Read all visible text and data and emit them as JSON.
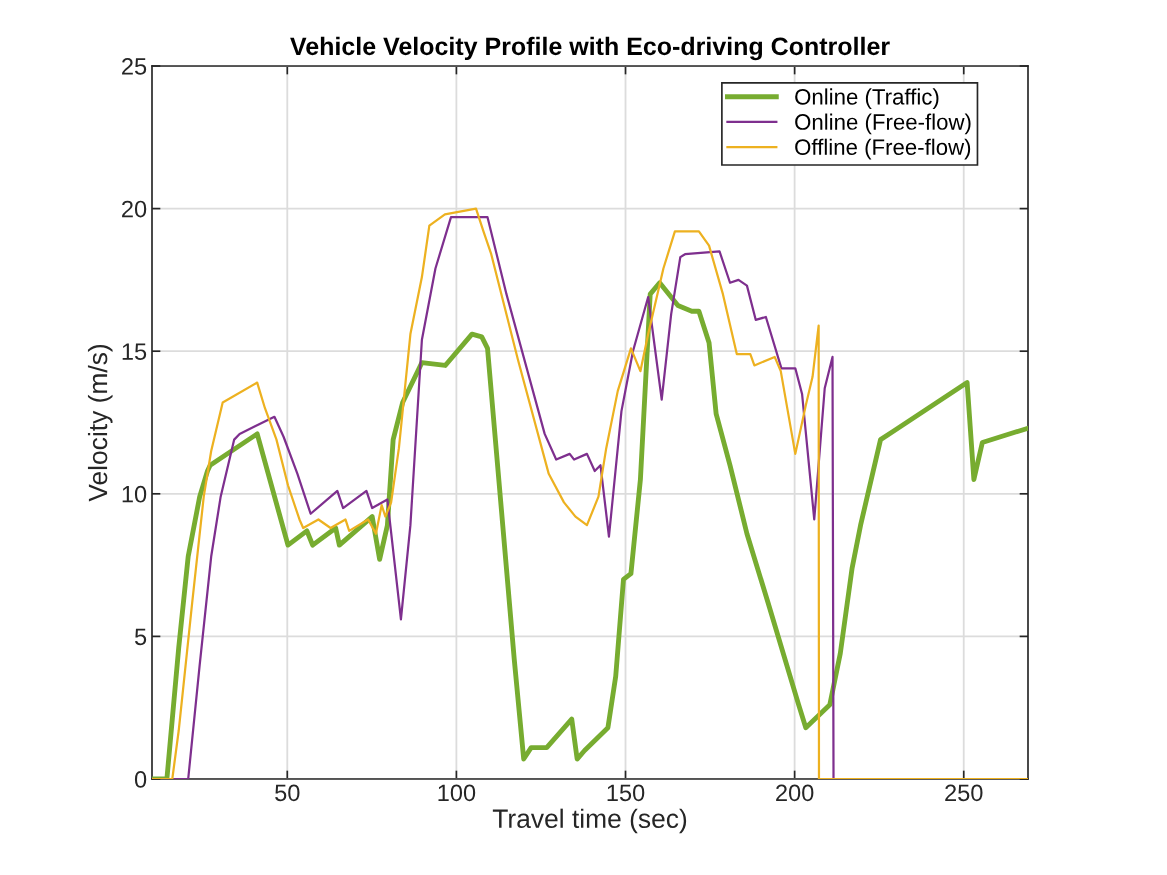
{
  "chart_data": {
    "type": "line",
    "title": "Vehicle Velocity Profile with Eco-driving Controller",
    "xlabel": "Travel time (sec)",
    "ylabel": "Velocity (m/s)",
    "xlim": [
      10,
      269
    ],
    "ylim": [
      0,
      25
    ],
    "xticks": [
      50,
      100,
      150,
      200,
      250
    ],
    "yticks": [
      0,
      5,
      10,
      15,
      20,
      25
    ],
    "grid": true,
    "legend": "top right",
    "line_style": "solid",
    "marker": "none",
    "series": [
      {
        "name": "Online (Traffic)",
        "color": "#77ac30",
        "x": [
          10,
          14.4,
          17.9,
          20.7,
          24.1,
          26.4,
          27.2,
          41.1,
          50.2,
          55.8,
          57.5,
          64.3,
          65.4,
          75.1,
          77.3,
          79.6,
          81.3,
          84.1,
          89.8,
          96.7,
          104.6,
          107.5,
          109.2,
          113.7,
          117.1,
          119.9,
          122.1,
          126.7,
          134.1,
          135.7,
          137.9,
          144.8,
          147.1,
          149.4,
          151.6,
          154.4,
          157.3,
          160.1,
          165.5,
          169.6,
          171.7,
          174.7,
          176.8,
          180.9,
          185.9,
          192.1,
          201.2,
          203.3,
          210.4,
          213.5,
          217.0,
          219.5,
          225.4,
          229.3,
          251.0,
          253.0,
          255.5,
          269
        ],
        "values": [
          0,
          0,
          4.6,
          7.8,
          9.9,
          10.8,
          11.0,
          12.1,
          8.2,
          8.7,
          8.2,
          8.8,
          8.2,
          9.2,
          7.7,
          8.9,
          11.9,
          13.2,
          14.6,
          14.5,
          15.6,
          15.5,
          15.1,
          8.9,
          4.2,
          0.7,
          1.1,
          1.1,
          2.1,
          0.7,
          1.0,
          1.8,
          3.6,
          7.0,
          7.2,
          10.5,
          17.0,
          17.4,
          16.6,
          16.4,
          16.4,
          15.3,
          12.8,
          11.0,
          8.6,
          6.2,
          2.6,
          1.8,
          2.6,
          4.4,
          7.4,
          8.9,
          11.9,
          12.2,
          13.9,
          10.5,
          11.8,
          12.3
        ]
      },
      {
        "name": "Online (Free-flow)",
        "color": "#7e2f8e",
        "x": [
          10,
          20.7,
          24.1,
          27.5,
          30.3,
          34.3,
          35.9,
          46.2,
          48.9,
          53.0,
          56.9,
          64.8,
          66.5,
          73.4,
          75.1,
          79.6,
          83.6,
          86.4,
          89.8,
          93.8,
          98.4,
          109.2,
          114.8,
          126.1,
          129.5,
          133.5,
          134.8,
          138.6,
          140.9,
          142.6,
          145.1,
          148.8,
          152.2,
          156.7,
          160.7,
          163.5,
          166.2,
          167.6,
          177.8,
          180.9,
          183.4,
          185.9,
          188.5,
          191.5,
          196.1,
          200.2,
          202.2,
          205.8,
          208.9,
          211.2,
          211.5,
          269
        ],
        "values": [
          0,
          0,
          4.0,
          7.8,
          9.9,
          11.9,
          12.1,
          12.7,
          12.0,
          10.7,
          9.3,
          10.1,
          9.5,
          10.1,
          9.5,
          9.8,
          5.6,
          8.9,
          15.4,
          17.9,
          19.7,
          19.7,
          17.0,
          12.1,
          11.2,
          11.4,
          11.2,
          11.4,
          10.8,
          11.0,
          8.5,
          12.9,
          15.0,
          16.9,
          13.3,
          16.3,
          18.3,
          18.4,
          18.5,
          17.4,
          17.5,
          17.3,
          16.1,
          16.2,
          14.4,
          14.4,
          13.5,
          9.1,
          13.7,
          14.8,
          0,
          0
        ]
      },
      {
        "name": "Offline (Free-flow)",
        "color": "#edb120",
        "x": [
          10,
          16.0,
          17.9,
          21.9,
          25.3,
          27.5,
          30.9,
          41.1,
          43.4,
          46.8,
          50.2,
          53.6,
          54.7,
          59.2,
          62.8,
          67.2,
          68.3,
          73.9,
          76.2,
          77.9,
          79.0,
          80.7,
          83.0,
          86.4,
          89.8,
          92.0,
          96.6,
          105.8,
          108.0,
          110.3,
          118.2,
          127.3,
          131.8,
          135.2,
          138.6,
          142.0,
          144.3,
          147.7,
          151.6,
          154.4,
          156.7,
          161.2,
          164.6,
          171.7,
          174.7,
          178.8,
          182.9,
          186.9,
          188.1,
          194.1,
          195.9,
          200.2,
          203.3,
          205.3,
          207.1,
          207.2,
          269
        ],
        "values": [
          0,
          0,
          1.7,
          6.2,
          9.9,
          11.5,
          13.2,
          13.9,
          13.0,
          11.9,
          10.3,
          9.1,
          8.8,
          9.1,
          8.8,
          9.1,
          8.7,
          9.1,
          8.6,
          9.6,
          9.2,
          9.7,
          11.6,
          15.6,
          17.6,
          19.4,
          19.8,
          20.0,
          19.2,
          18.4,
          14.7,
          10.7,
          9.7,
          9.2,
          8.9,
          9.9,
          11.6,
          13.6,
          15.1,
          14.3,
          15.6,
          17.9,
          19.2,
          19.2,
          18.7,
          17.0,
          14.9,
          14.9,
          14.5,
          14.8,
          14.3,
          11.4,
          13.1,
          14.1,
          15.9,
          0,
          0
        ]
      }
    ]
  }
}
